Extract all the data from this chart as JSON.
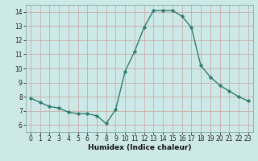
{
  "x": [
    0,
    1,
    2,
    3,
    4,
    5,
    6,
    7,
    8,
    9,
    10,
    11,
    12,
    13,
    14,
    15,
    16,
    17,
    18,
    19,
    20,
    21,
    22,
    23
  ],
  "y": [
    7.9,
    7.6,
    7.3,
    7.2,
    6.9,
    6.8,
    6.8,
    6.65,
    6.1,
    7.1,
    9.8,
    11.2,
    12.9,
    14.1,
    14.1,
    14.1,
    13.7,
    12.9,
    10.2,
    9.4,
    8.8,
    8.4,
    8.0,
    7.7
  ],
  "line_color": "#2e7d6e",
  "marker_color": "#2e7d6e",
  "bg_color": "#cce9e7",
  "grid_color_major": "#b8d4d2",
  "grid_color_minor": "#d4e8e6",
  "xlabel": "Humidex (Indice chaleur)",
  "xlim": [
    -0.5,
    23.5
  ],
  "ylim": [
    5.5,
    14.5
  ],
  "yticks": [
    6,
    7,
    8,
    9,
    10,
    11,
    12,
    13,
    14
  ],
  "xticks": [
    0,
    1,
    2,
    3,
    4,
    5,
    6,
    7,
    8,
    9,
    10,
    11,
    12,
    13,
    14,
    15,
    16,
    17,
    18,
    19,
    20,
    21,
    22,
    23
  ],
  "xlabel_fontsize": 6.5,
  "tick_fontsize": 5.5,
  "marker_size": 2.5,
  "line_width": 1.0,
  "spine_color": "#8ab0ae"
}
